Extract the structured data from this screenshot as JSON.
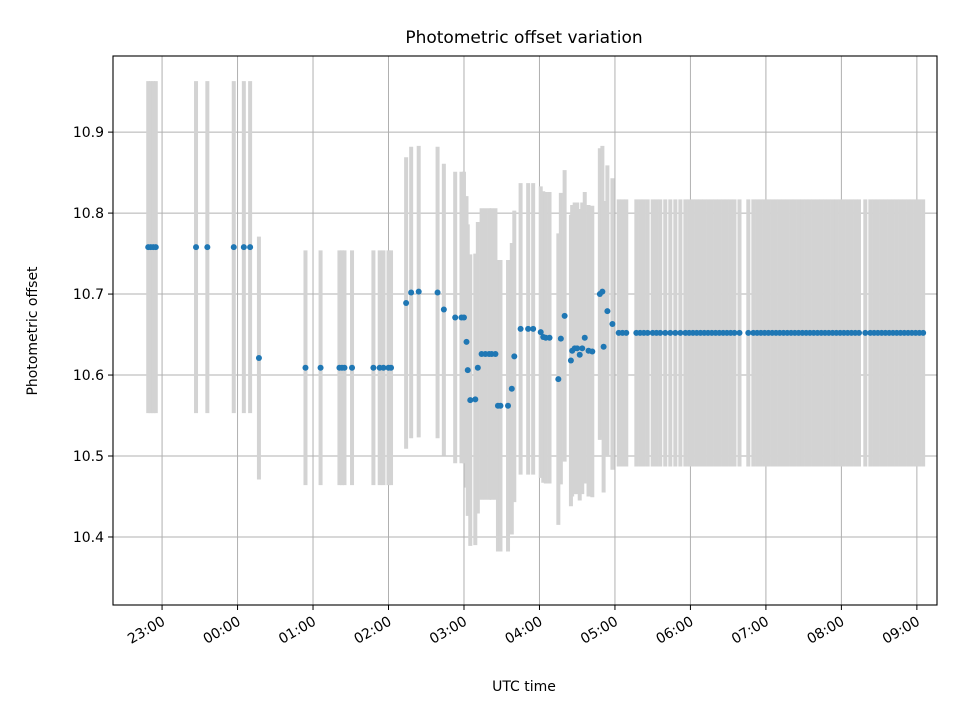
{
  "chart_data": {
    "type": "scatter",
    "title": "Photometric offset variation",
    "xlabel": "UTC time",
    "ylabel": "Photometric offset",
    "ylim": [
      10.316,
      10.994
    ],
    "xlim": [
      "22:21",
      "09:16"
    ],
    "grid": true,
    "x_tick_labels": [
      "23:00",
      "00:00",
      "01:00",
      "02:00",
      "03:00",
      "04:00",
      "05:00",
      "06:00",
      "07:00",
      "08:00",
      "09:00"
    ],
    "y_tick_labels": [
      "10.4",
      "10.5",
      "10.6",
      "10.7",
      "10.8",
      "10.9"
    ],
    "colors": {
      "points": "#1f77b4",
      "error_bars": "#d3d3d3",
      "grid": "#b0b0b0"
    },
    "series": [
      {
        "error_bar_halfwidth": 0.205,
        "points": [
          [
            "22:49",
            10.758
          ],
          [
            "22:51",
            10.758
          ],
          [
            "22:53",
            10.758
          ],
          [
            "22:55",
            10.758
          ]
        ]
      },
      {
        "error_bar_halfwidth": 0.205,
        "points": [
          [
            "23:27",
            10.758
          ],
          [
            "23:36",
            10.758
          ],
          [
            "23:57",
            10.758
          ],
          [
            "00:05",
            10.758
          ],
          [
            "00:10",
            10.758
          ]
        ]
      },
      {
        "error_bar_halfwidth": 0.15,
        "points": [
          [
            "00:17",
            10.621
          ]
        ]
      },
      {
        "error_bar_halfwidth": 0.145,
        "points": [
          [
            "00:54",
            10.609
          ],
          [
            "01:06",
            10.609
          ],
          [
            "01:21",
            10.609
          ],
          [
            "01:23",
            10.609
          ],
          [
            "01:25",
            10.609
          ],
          [
            "01:31",
            10.609
          ],
          [
            "01:48",
            10.609
          ],
          [
            "01:53",
            10.609
          ],
          [
            "01:56",
            10.609
          ],
          [
            "02:00",
            10.609
          ],
          [
            "02:02",
            10.609
          ]
        ]
      },
      {
        "error_bar_halfwidth": 0.18,
        "points": [
          [
            "02:14",
            10.689
          ],
          [
            "02:18",
            10.702
          ],
          [
            "02:24",
            10.703
          ],
          [
            "02:39",
            10.702
          ],
          [
            "02:44",
            10.681
          ],
          [
            "02:53",
            10.671
          ],
          [
            "02:58",
            10.671
          ],
          [
            "03:00",
            10.671
          ],
          [
            "03:02",
            10.641
          ],
          [
            "03:03",
            10.606
          ],
          [
            "03:05",
            10.569
          ],
          [
            "03:09",
            10.57
          ],
          [
            "03:11",
            10.609
          ],
          [
            "03:14",
            10.626
          ],
          [
            "03:17",
            10.626
          ],
          [
            "03:20",
            10.626
          ],
          [
            "03:22",
            10.626
          ],
          [
            "03:25",
            10.626
          ],
          [
            "03:27",
            10.562
          ],
          [
            "03:29",
            10.562
          ],
          [
            "03:35",
            10.562
          ],
          [
            "03:38",
            10.583
          ],
          [
            "03:40",
            10.623
          ],
          [
            "03:45",
            10.657
          ],
          [
            "03:51",
            10.657
          ],
          [
            "03:55",
            10.657
          ],
          [
            "04:01",
            10.653
          ],
          [
            "04:03",
            10.647
          ],
          [
            "04:05",
            10.646
          ],
          [
            "04:08",
            10.646
          ],
          [
            "04:15",
            10.595
          ],
          [
            "04:17",
            10.645
          ],
          [
            "04:20",
            10.673
          ],
          [
            "04:25",
            10.618
          ],
          [
            "04:26",
            10.63
          ],
          [
            "04:28",
            10.633
          ],
          [
            "04:30",
            10.633
          ],
          [
            "04:32",
            10.625
          ],
          [
            "04:34",
            10.633
          ],
          [
            "04:36",
            10.646
          ],
          [
            "04:39",
            10.63
          ],
          [
            "04:42",
            10.629
          ],
          [
            "04:48",
            10.7
          ],
          [
            "04:50",
            10.703
          ],
          [
            "04:51",
            10.635
          ],
          [
            "04:54",
            10.679
          ],
          [
            "04:58",
            10.663
          ]
        ]
      },
      {
        "error_bar_halfwidth": 0.165,
        "points": [
          [
            "05:03",
            10.652
          ],
          [
            "05:06",
            10.652
          ],
          [
            "05:09",
            10.652
          ],
          [
            "05:17",
            10.652
          ],
          [
            "05:20",
            10.652
          ],
          [
            "05:23",
            10.652
          ],
          [
            "05:26",
            10.652
          ],
          [
            "05:30",
            10.652
          ],
          [
            "05:33",
            10.652
          ],
          [
            "05:36",
            10.652
          ],
          [
            "05:40",
            10.652
          ],
          [
            "05:44",
            10.652
          ],
          [
            "05:48",
            10.652
          ],
          [
            "05:52",
            10.652
          ],
          [
            "05:56",
            10.652
          ],
          [
            "05:59",
            10.652
          ],
          [
            "06:02",
            10.652
          ],
          [
            "06:05",
            10.652
          ],
          [
            "06:08",
            10.652
          ],
          [
            "06:11",
            10.652
          ],
          [
            "06:14",
            10.652
          ],
          [
            "06:17",
            10.652
          ],
          [
            "06:20",
            10.652
          ],
          [
            "06:23",
            10.652
          ],
          [
            "06:26",
            10.652
          ],
          [
            "06:29",
            10.652
          ],
          [
            "06:32",
            10.652
          ],
          [
            "06:35",
            10.652
          ],
          [
            "06:39",
            10.652
          ],
          [
            "06:46",
            10.652
          ],
          [
            "06:50",
            10.652
          ],
          [
            "06:53",
            10.652
          ],
          [
            "06:56",
            10.652
          ],
          [
            "06:59",
            10.652
          ],
          [
            "07:02",
            10.652
          ],
          [
            "07:05",
            10.652
          ],
          [
            "07:08",
            10.652
          ],
          [
            "07:11",
            10.652
          ],
          [
            "07:14",
            10.652
          ],
          [
            "07:17",
            10.652
          ],
          [
            "07:20",
            10.652
          ],
          [
            "07:23",
            10.652
          ],
          [
            "07:26",
            10.652
          ],
          [
            "07:29",
            10.652
          ],
          [
            "07:32",
            10.652
          ],
          [
            "07:35",
            10.652
          ],
          [
            "07:38",
            10.652
          ],
          [
            "07:41",
            10.652
          ],
          [
            "07:44",
            10.652
          ],
          [
            "07:47",
            10.652
          ],
          [
            "07:50",
            10.652
          ],
          [
            "07:53",
            10.652
          ],
          [
            "07:56",
            10.652
          ],
          [
            "07:59",
            10.652
          ],
          [
            "08:02",
            10.652
          ],
          [
            "08:05",
            10.652
          ],
          [
            "08:08",
            10.652
          ],
          [
            "08:11",
            10.652
          ],
          [
            "08:14",
            10.652
          ],
          [
            "08:19",
            10.652
          ],
          [
            "08:23",
            10.652
          ],
          [
            "08:26",
            10.652
          ],
          [
            "08:29",
            10.652
          ],
          [
            "08:32",
            10.652
          ],
          [
            "08:35",
            10.652
          ],
          [
            "08:38",
            10.652
          ],
          [
            "08:41",
            10.652
          ],
          [
            "08:44",
            10.652
          ],
          [
            "08:47",
            10.652
          ],
          [
            "08:50",
            10.652
          ],
          [
            "08:53",
            10.652
          ],
          [
            "08:56",
            10.652
          ],
          [
            "08:59",
            10.652
          ],
          [
            "09:02",
            10.652
          ],
          [
            "09:05",
            10.652
          ]
        ]
      }
    ]
  }
}
